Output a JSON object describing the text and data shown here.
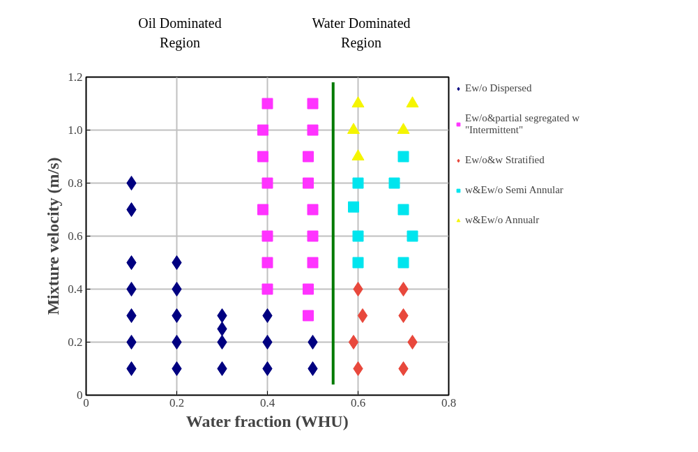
{
  "chart_data": {
    "type": "scatter",
    "xlabel": "Water fraction (WHU)",
    "ylabel": "Mixture velocity (m/s)",
    "annotations": [
      "Oil Dominated\nRegion",
      "Water Dominated\nRegion"
    ],
    "xlim": [
      0,
      0.8
    ],
    "ylim": [
      0,
      1.2
    ],
    "xticks": [
      0,
      0.2,
      0.4,
      0.6,
      0.8
    ],
    "yticks": [
      0,
      0.2,
      0.4,
      0.6,
      0.8,
      {
        "value": 1.0,
        "label": "1.0"
      },
      1.2
    ],
    "grid": true,
    "legend": "right",
    "series": [
      {
        "name": "Ew/o Dispersed",
        "color": "#000080",
        "marker": "diamond",
        "x": [
          0.1,
          0.1,
          0.1,
          0.1,
          0.1,
          0.1,
          0.1,
          0.2,
          0.2,
          0.2,
          0.2,
          0.2,
          0.3,
          0.3,
          0.3,
          0.3,
          0.4,
          0.4,
          0.4,
          0.5,
          0.5
        ],
        "values": [
          0.8,
          0.7,
          0.5,
          0.4,
          0.3,
          0.2,
          0.1,
          0.5,
          0.4,
          0.3,
          0.2,
          0.1,
          0.3,
          0.25,
          0.2,
          0.1,
          0.3,
          0.2,
          0.1,
          0.2,
          0.1
        ]
      },
      {
        "name": "Ew/o&partial segregated w\n\"Intermittent\"",
        "color": "#ff33ff",
        "marker": "square",
        "x": [
          0.4,
          0.39,
          0.39,
          0.4,
          0.39,
          0.4,
          0.4,
          0.4,
          0.5,
          0.5,
          0.49,
          0.49,
          0.5,
          0.5,
          0.5,
          0.49,
          0.49
        ],
        "values": [
          1.1,
          1.0,
          0.9,
          0.8,
          0.7,
          0.6,
          0.5,
          0.4,
          1.1,
          1.0,
          0.9,
          0.8,
          0.7,
          0.6,
          0.5,
          0.4,
          0.3
        ]
      },
      {
        "name": "Ew/o&w Stratified",
        "color": "#e8483c",
        "marker": "diamond",
        "x": [
          0.6,
          0.7,
          0.61,
          0.7,
          0.59,
          0.72,
          0.6,
          0.7
        ],
        "values": [
          0.4,
          0.4,
          0.3,
          0.3,
          0.2,
          0.2,
          0.1,
          0.1
        ]
      },
      {
        "name": "w&Ew/o Semi Annular",
        "color": "#00e5ee",
        "marker": "square",
        "x": [
          0.7,
          0.6,
          0.68,
          0.59,
          0.7,
          0.6,
          0.72,
          0.6,
          0.7
        ],
        "values": [
          0.9,
          0.8,
          0.8,
          0.71,
          0.7,
          0.6,
          0.6,
          0.5,
          0.5
        ]
      },
      {
        "name": "w&Ew/o Annualr",
        "color": "#f5f500",
        "marker": "triangle",
        "x": [
          0.6,
          0.72,
          0.59,
          0.7,
          0.6
        ],
        "values": [
          1.1,
          1.1,
          1.0,
          1.0,
          0.9
        ]
      },
      {
        "type": "line",
        "color": "#007a00",
        "x": [
          0.545,
          0.545
        ],
        "values": [
          0.04,
          1.18
        ]
      }
    ]
  }
}
